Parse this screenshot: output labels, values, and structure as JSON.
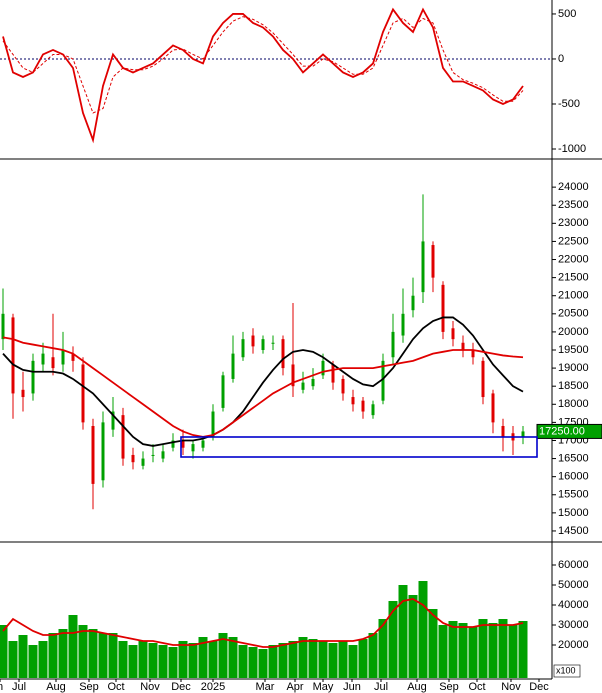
{
  "chart_data": [
    {
      "type": "line",
      "ylim": [
        -1100,
        655
      ],
      "yticks": [
        -1000,
        -500,
        0,
        500
      ],
      "xlim": [
        -0.3,
        54.9
      ],
      "zero_line": true,
      "series": [
        {
          "color": "#e00000",
          "dashed": false,
          "values": [
            250,
            -150,
            -200,
            -150,
            50,
            100,
            50,
            -100,
            -600,
            -900,
            -300,
            50,
            -100,
            -150,
            -100,
            -50,
            50,
            150,
            100,
            0,
            -50,
            250,
            400,
            500,
            500,
            400,
            350,
            250,
            100,
            0,
            -150,
            -50,
            50,
            -50,
            -150,
            -200,
            -150,
            -50,
            300,
            550,
            400,
            300,
            550,
            350,
            -100,
            -250,
            -250,
            -300,
            -350,
            -450,
            -500,
            -450,
            -300
          ]
        },
        {
          "color": "#e00000",
          "dashed": true,
          "values": [
            200,
            50,
            -100,
            -150,
            -50,
            50,
            50,
            0,
            -300,
            -600,
            -550,
            -200,
            -100,
            -120,
            -120,
            -80,
            0,
            100,
            110,
            50,
            0,
            150,
            300,
            420,
            470,
            440,
            380,
            290,
            170,
            50,
            -80,
            -80,
            0,
            -30,
            -100,
            -170,
            -170,
            -100,
            150,
            400,
            450,
            350,
            450,
            400,
            100,
            -150,
            -230,
            -270,
            -320,
            -400,
            -470,
            -470,
            -350
          ]
        }
      ]
    },
    {
      "type": "candlestick",
      "ylim": [
        14250,
        24750
      ],
      "yticks": [
        14500,
        15000,
        15500,
        16000,
        16500,
        17000,
        17500,
        18000,
        18500,
        19000,
        19500,
        20000,
        20500,
        21000,
        21500,
        22000,
        22500,
        23000,
        23500,
        24000
      ],
      "xlim": [
        -0.3,
        54.9
      ],
      "up_color": "#00a000",
      "down_color": "#e00000",
      "last_value": 17250,
      "last_label": "17250.00",
      "open": [
        19800,
        20400,
        18400,
        18300,
        19100,
        19300,
        19100,
        19400,
        19100,
        17400,
        15900,
        17300,
        17700,
        16600,
        16300,
        16600,
        16500,
        16800,
        17000,
        16700,
        16800,
        17100,
        17900,
        18700,
        19300,
        19900,
        19500,
        19700,
        19800,
        19100,
        18400,
        18500,
        18800,
        19100,
        18700,
        18200,
        18100,
        17700,
        18100,
        19300,
        19900,
        20600,
        21100,
        22400,
        21300,
        20100,
        19700,
        19500,
        19200,
        18300,
        17400,
        17200,
        17100
      ],
      "high": [
        21200,
        20500,
        18900,
        19400,
        19700,
        20500,
        20000,
        19600,
        19300,
        17600,
        17800,
        18200,
        17900,
        16800,
        16700,
        16900,
        16900,
        17200,
        17300,
        17000,
        17100,
        18000,
        18900,
        19900,
        20000,
        20100,
        19900,
        19900,
        19900,
        20800,
        18900,
        19000,
        19400,
        19200,
        18800,
        18400,
        18200,
        18100,
        19400,
        20500,
        21200,
        21500,
        23800,
        22500,
        21400,
        20300,
        19900,
        19700,
        19300,
        18400,
        17600,
        17400,
        17400
      ],
      "low": [
        19500,
        17600,
        17800,
        18100,
        18900,
        18800,
        18900,
        18900,
        17300,
        15100,
        15700,
        17100,
        16300,
        16200,
        16200,
        16400,
        16400,
        16700,
        16600,
        16500,
        16700,
        17000,
        17800,
        18600,
        19200,
        19400,
        19400,
        19500,
        18800,
        18200,
        18300,
        18400,
        18700,
        18400,
        18100,
        17800,
        17600,
        17600,
        18000,
        19100,
        19700,
        20400,
        20800,
        21100,
        19800,
        19600,
        19300,
        19100,
        18000,
        17200,
        16700,
        16600,
        16900
      ],
      "close": [
        20500,
        18300,
        18200,
        19200,
        19400,
        19000,
        19500,
        19200,
        17500,
        15800,
        17500,
        17800,
        16500,
        16400,
        16500,
        16600,
        16700,
        17000,
        16800,
        16900,
        17000,
        17800,
        18800,
        19400,
        19800,
        19600,
        19800,
        19700,
        19000,
        18500,
        18600,
        18700,
        19200,
        18600,
        18300,
        18000,
        17800,
        18000,
        19200,
        20000,
        20500,
        21000,
        22500,
        21500,
        20000,
        19800,
        19500,
        19300,
        18200,
        17500,
        17100,
        17000,
        17250
      ],
      "series": [
        {
          "color": "#000000",
          "dashed": false,
          "values": [
            19400,
            19100,
            18950,
            18900,
            18900,
            18900,
            18850,
            18700,
            18500,
            18300,
            18000,
            17700,
            17400,
            17100,
            16900,
            16850,
            16900,
            16950,
            17000,
            17000,
            17050,
            17150,
            17300,
            17500,
            17800,
            18200,
            18600,
            18950,
            19250,
            19450,
            19500,
            19450,
            19300,
            19100,
            18900,
            18700,
            18550,
            18500,
            18700,
            19000,
            19400,
            19800,
            20100,
            20300,
            20400,
            20400,
            20200,
            19900,
            19500,
            19100,
            18800,
            18500,
            18350
          ]
        },
        {
          "color": "#e00000",
          "dashed": false,
          "values": [
            19850,
            19800,
            19700,
            19650,
            19600,
            19550,
            19500,
            19400,
            19200,
            19000,
            18800,
            18600,
            18400,
            18200,
            18000,
            17800,
            17600,
            17400,
            17250,
            17150,
            17100,
            17150,
            17300,
            17500,
            17700,
            17900,
            18100,
            18300,
            18450,
            18600,
            18700,
            18800,
            18900,
            18950,
            19000,
            19000,
            19000,
            19000,
            19050,
            19100,
            19150,
            19200,
            19300,
            19400,
            19450,
            19500,
            19500,
            19500,
            19450,
            19400,
            19350,
            19320,
            19300
          ]
        }
      ]
    },
    {
      "type": "bar",
      "ylim": [
        3500,
        70000
      ],
      "yticks": [
        20000,
        30000,
        40000,
        50000,
        60000
      ],
      "xlim": [
        -0.3,
        54.9
      ],
      "unit_label": "x100",
      "color": "#00a000",
      "values": [
        30000,
        22000,
        25000,
        20000,
        22000,
        26000,
        28000,
        35000,
        30000,
        28000,
        26000,
        26000,
        22000,
        20000,
        22000,
        21000,
        20000,
        19000,
        22000,
        21000,
        24000,
        22000,
        26000,
        24000,
        20000,
        19000,
        18000,
        20000,
        21000,
        22000,
        24000,
        23000,
        22000,
        21000,
        22000,
        20000,
        23000,
        26000,
        33000,
        42000,
        50000,
        45000,
        52000,
        38000,
        30000,
        32000,
        31000,
        29000,
        33000,
        31000,
        33000,
        30000,
        32000
      ],
      "series": [
        {
          "color": "#e00000",
          "dashed": false,
          "values": [
            27000,
            33000,
            30000,
            27000,
            25000,
            25000,
            26000,
            26000,
            27000,
            27000,
            26000,
            25000,
            24000,
            23000,
            22000,
            22000,
            21000,
            20000,
            20000,
            20000,
            21000,
            22000,
            23000,
            22000,
            21000,
            20000,
            19000,
            19000,
            20000,
            21000,
            22000,
            22000,
            22000,
            22000,
            22000,
            22000,
            23000,
            25000,
            30000,
            37000,
            42000,
            43000,
            40000,
            35000,
            31000,
            29000,
            29000,
            29000,
            30000,
            30000,
            30000,
            30000,
            31000
          ]
        }
      ],
      "xticks": [
        {
          "value": -0.3,
          "label": "n"
        },
        {
          "value": 1.6,
          "label": "Jul"
        },
        {
          "value": 5.3,
          "label": "Aug"
        },
        {
          "value": 8.6,
          "label": "Sep"
        },
        {
          "value": 11.3,
          "label": "Oct"
        },
        {
          "value": 14.7,
          "label": "Nov"
        },
        {
          "value": 17.8,
          "label": "Dec"
        },
        {
          "value": 21,
          "label": "2025"
        },
        {
          "value": 26.2,
          "label": "Mar"
        },
        {
          "value": 29.2,
          "label": "Apr"
        },
        {
          "value": 32,
          "label": "May"
        },
        {
          "value": 34.9,
          "label": "Jun"
        },
        {
          "value": 37.8,
          "label": "Jul"
        },
        {
          "value": 41.4,
          "label": "Aug"
        },
        {
          "value": 44.6,
          "label": "Sep"
        },
        {
          "value": 47.4,
          "label": "Oct"
        },
        {
          "value": 50.8,
          "label": "Nov"
        },
        {
          "value": 53.6,
          "label": "Dec"
        }
      ]
    }
  ]
}
